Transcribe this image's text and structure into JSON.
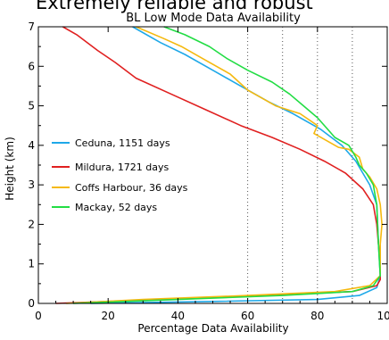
{
  "page": {
    "headline": "Extremely reliable and robust"
  },
  "chart_data": {
    "type": "line",
    "title": "BL Low Mode Data Availability",
    "xlabel": "Percentage Data Availability",
    "ylabel": "Height (km)",
    "xlim": [
      0,
      100
    ],
    "ylim": [
      0,
      7
    ],
    "xticks": [
      0,
      20,
      40,
      60,
      80,
      100
    ],
    "yticks": [
      0,
      1,
      2,
      3,
      4,
      5,
      6,
      7
    ],
    "vertical_reference_lines_x": [
      60,
      70,
      80,
      90
    ],
    "grid": false,
    "legend_position": "left",
    "series": [
      {
        "name": "Ceduna, 1151 days",
        "color": "#1ea8e8",
        "points": [
          [
            15,
            0
          ],
          [
            50,
            0.05
          ],
          [
            80,
            0.1
          ],
          [
            92,
            0.2
          ],
          [
            97,
            0.4
          ],
          [
            98,
            0.7
          ],
          [
            97.5,
            1.5
          ],
          [
            97,
            2.5
          ],
          [
            95,
            3.0
          ],
          [
            93,
            3.3
          ],
          [
            91,
            3.6
          ],
          [
            87,
            4.0
          ],
          [
            81,
            4.4
          ],
          [
            73,
            4.8
          ],
          [
            66,
            5.1
          ],
          [
            58,
            5.5
          ],
          [
            50,
            5.9
          ],
          [
            42,
            6.3
          ],
          [
            35,
            6.6
          ],
          [
            27,
            7.0
          ]
        ]
      },
      {
        "name": "Mildura, 1721 days",
        "color": "#e02020",
        "points": [
          [
            5,
            0
          ],
          [
            20,
            0.05
          ],
          [
            50,
            0.15
          ],
          [
            70,
            0.22
          ],
          [
            90,
            0.3
          ],
          [
            97,
            0.45
          ],
          [
            98,
            0.6
          ],
          [
            98,
            1.0
          ],
          [
            97.5,
            1.5
          ],
          [
            97,
            2.0
          ],
          [
            96,
            2.5
          ],
          [
            93,
            2.9
          ],
          [
            88,
            3.3
          ],
          [
            82,
            3.6
          ],
          [
            75,
            3.9
          ],
          [
            67,
            4.2
          ],
          [
            58,
            4.5
          ],
          [
            48,
            4.9
          ],
          [
            38,
            5.3
          ],
          [
            28,
            5.7
          ],
          [
            22,
            6.1
          ],
          [
            17,
            6.4
          ],
          [
            11,
            6.8
          ],
          [
            7,
            7.0
          ]
        ]
      },
      {
        "name": "Coffs Harbour, 36 days",
        "color": "#f5b90f",
        "points": [
          [
            8,
            0
          ],
          [
            30,
            0.1
          ],
          [
            60,
            0.2
          ],
          [
            85,
            0.3
          ],
          [
            95,
            0.45
          ],
          [
            98,
            0.7
          ],
          [
            98,
            1.5
          ],
          [
            98.5,
            2.0
          ],
          [
            98,
            2.5
          ],
          [
            97,
            2.9
          ],
          [
            95,
            3.2
          ],
          [
            93,
            3.4
          ],
          [
            92,
            3.7
          ],
          [
            89,
            3.9
          ],
          [
            86,
            3.95
          ],
          [
            79,
            4.3
          ],
          [
            80,
            4.5
          ],
          [
            75,
            4.8
          ],
          [
            68,
            5.0
          ],
          [
            60,
            5.4
          ],
          [
            55,
            5.8
          ],
          [
            47,
            6.2
          ],
          [
            41,
            6.5
          ],
          [
            36,
            6.7
          ],
          [
            28,
            7.0
          ]
        ]
      },
      {
        "name": "Mackay, 52 days",
        "color": "#22dd44",
        "points": [
          [
            10,
            0
          ],
          [
            40,
            0.1
          ],
          [
            70,
            0.2
          ],
          [
            90,
            0.3
          ],
          [
            96,
            0.45
          ],
          [
            98,
            0.7
          ],
          [
            97.5,
            1.5
          ],
          [
            97,
            2.5
          ],
          [
            96,
            3.0
          ],
          [
            94,
            3.3
          ],
          [
            92,
            3.5
          ],
          [
            91,
            3.7
          ],
          [
            89,
            4.0
          ],
          [
            85,
            4.2
          ],
          [
            83,
            4.4
          ],
          [
            80,
            4.7
          ],
          [
            76,
            5.0
          ],
          [
            72,
            5.3
          ],
          [
            67,
            5.6
          ],
          [
            60,
            5.9
          ],
          [
            54,
            6.2
          ],
          [
            49,
            6.5
          ],
          [
            42,
            6.8
          ],
          [
            36,
            7.0
          ]
        ]
      }
    ]
  }
}
